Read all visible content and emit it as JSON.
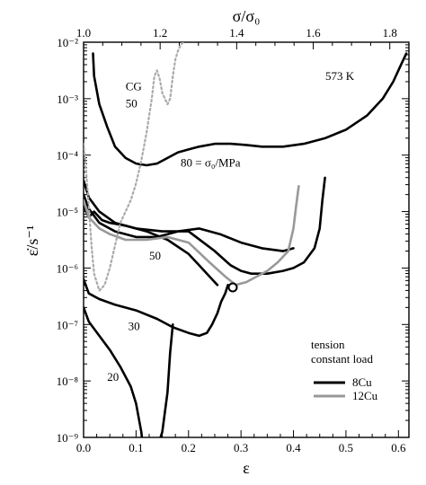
{
  "chart_data": {
    "type": "line",
    "xlabel": "ε",
    "ylabel": "ε̇/s⁻¹",
    "top_axis_label": "σ/σ₀",
    "xlim": [
      0,
      0.62
    ],
    "ylim_log10": [
      -9,
      -2
    ],
    "y_scale": "log",
    "grid": false,
    "x_ticks": [
      "0.0",
      "0.1",
      "0.2",
      "0.3",
      "0.4",
      "0.5",
      "0.6"
    ],
    "y_ticks": [
      "10⁻⁹",
      "10⁻⁸",
      "10⁻⁷",
      "10⁻⁶",
      "10⁻⁵",
      "10⁻⁴",
      "10⁻³",
      "10⁻²"
    ],
    "top_ticks": [
      "1.0",
      "1.2",
      "1.4",
      "1.6",
      "1.8"
    ],
    "top_range": [
      1.0,
      1.85
    ],
    "temperature_label": "573 K",
    "legend": {
      "title_lines": [
        "tension",
        "constant load"
      ],
      "items": [
        {
          "name": "8Cu",
          "color": "#000000"
        },
        {
          "name": "12Cu",
          "color": "#999999"
        }
      ]
    },
    "annotations": [
      {
        "text": "80 = σ₀/MPa",
        "x": 0.185,
        "log10y": -4.2
      },
      {
        "text": "50",
        "x": 0.125,
        "log10y": -5.85
      },
      {
        "text": "30",
        "x": 0.085,
        "log10y": -7.1
      },
      {
        "text": "20",
        "x": 0.045,
        "log10y": -8.0
      },
      {
        "text": "CG",
        "x": 0.08,
        "log10y": -2.85
      },
      {
        "text": "50",
        "x": 0.08,
        "log10y": -3.15
      }
    ],
    "series": [
      {
        "label": "8Cu 80 MPa",
        "color": "#000000",
        "dash": "none",
        "x": [
          0.018,
          0.02,
          0.03,
          0.045,
          0.06,
          0.08,
          0.1,
          0.12,
          0.14,
          0.16,
          0.18,
          0.2,
          0.22,
          0.25,
          0.28,
          0.31,
          0.34,
          0.38,
          0.42,
          0.46,
          0.5,
          0.54,
          0.57,
          0.59,
          0.605,
          0.615
        ],
        "log10y": [
          -2.2,
          -2.6,
          -3.1,
          -3.5,
          -3.85,
          -4.05,
          -4.15,
          -4.18,
          -4.15,
          -4.05,
          -3.95,
          -3.9,
          -3.85,
          -3.8,
          -3.8,
          -3.82,
          -3.85,
          -3.85,
          -3.8,
          -3.7,
          -3.55,
          -3.3,
          -3.0,
          -2.7,
          -2.4,
          -2.2
        ]
      },
      {
        "label": "8Cu 50 MPa a",
        "color": "#000000",
        "dash": "none",
        "x": [
          0.0,
          0.01,
          0.03,
          0.06,
          0.1,
          0.15,
          0.2,
          0.25,
          0.28,
          0.3,
          0.32,
          0.35,
          0.38,
          0.4,
          0.42,
          0.44,
          0.45,
          0.455,
          0.46
        ],
        "log10y": [
          -4.45,
          -4.75,
          -5.0,
          -5.2,
          -5.3,
          -5.35,
          -5.35,
          -5.7,
          -5.95,
          -6.05,
          -6.1,
          -6.1,
          -6.05,
          -6.0,
          -5.9,
          -5.65,
          -5.3,
          -4.8,
          -4.4
        ]
      },
      {
        "label": "8Cu 50 MPa b",
        "color": "#000000",
        "dash": "none",
        "x": [
          0.0,
          0.01,
          0.03,
          0.06,
          0.1,
          0.14,
          0.18,
          0.22,
          0.26,
          0.3,
          0.34,
          0.38,
          0.4
        ],
        "log10y": [
          -4.7,
          -4.95,
          -5.2,
          -5.35,
          -5.45,
          -5.45,
          -5.35,
          -5.3,
          -5.4,
          -5.55,
          -5.65,
          -5.7,
          -5.65
        ]
      },
      {
        "label": "8Cu 50 MPa c",
        "color": "#000000",
        "dash": "none",
        "x": [
          0.0,
          0.01,
          0.02,
          0.035,
          0.05,
          0.08,
          0.12,
          0.16,
          0.2,
          0.22,
          0.24,
          0.255
        ],
        "log10y": [
          -4.9,
          -5.1,
          -5.0,
          -5.15,
          -5.2,
          -5.25,
          -5.35,
          -5.5,
          -5.75,
          -5.95,
          -6.15,
          -6.3
        ]
      },
      {
        "label": "8Cu 30 MPa",
        "color": "#000000",
        "dash": "none",
        "x": [
          0.0,
          0.01,
          0.03,
          0.06,
          0.1,
          0.14,
          0.17,
          0.2,
          0.22,
          0.235,
          0.245,
          0.255,
          0.262,
          0.27,
          0.275
        ],
        "log10y": [
          -6.2,
          -6.45,
          -6.55,
          -6.65,
          -6.75,
          -6.9,
          -7.05,
          -7.15,
          -7.2,
          -7.15,
          -7.0,
          -6.8,
          -6.6,
          -6.45,
          -6.3
        ]
      },
      {
        "label": "8Cu 20 MPa",
        "color": "#000000",
        "dash": "none",
        "x": [
          0.0,
          0.01,
          0.03,
          0.05,
          0.07,
          0.09,
          0.1,
          0.11,
          0.115,
          0.12,
          0.13,
          0.14,
          0.15,
          0.16,
          0.165,
          0.17
        ],
        "log10y": [
          -6.7,
          -6.95,
          -7.2,
          -7.45,
          -7.75,
          -8.1,
          -8.4,
          -8.9,
          -9.3,
          -9.35,
          -9.25,
          -9.2,
          -8.9,
          -8.2,
          -7.5,
          -7.0
        ]
      },
      {
        "label": "12Cu 50 MPa",
        "color": "#999999",
        "dash": "none",
        "x": [
          0.0,
          0.01,
          0.02,
          0.03,
          0.05,
          0.08,
          0.12,
          0.16,
          0.2,
          0.24,
          0.27,
          0.29,
          0.31,
          0.33,
          0.35,
          0.37,
          0.39,
          0.4,
          0.405,
          0.41
        ],
        "log10y": [
          -4.8,
          -5.1,
          -5.2,
          -5.3,
          -5.4,
          -5.5,
          -5.5,
          -5.45,
          -5.55,
          -5.9,
          -6.15,
          -6.3,
          -6.25,
          -6.15,
          -6.05,
          -5.9,
          -5.7,
          -5.3,
          -4.9,
          -4.55
        ]
      },
      {
        "label": "CG 50 MPa",
        "color": "#aaaaaa",
        "dash": "2,3",
        "x": [
          0.0,
          0.005,
          0.01,
          0.015,
          0.02,
          0.03,
          0.04,
          0.05,
          0.06,
          0.07,
          0.08,
          0.09,
          0.1,
          0.11,
          0.12,
          0.13,
          0.135,
          0.14,
          0.145,
          0.15,
          0.16,
          0.165,
          0.17,
          0.175,
          0.18,
          0.185,
          0.19,
          0.2
        ],
        "log10y": [
          -3.8,
          -4.3,
          -4.9,
          -5.6,
          -6.1,
          -6.4,
          -6.3,
          -6.0,
          -5.6,
          -5.2,
          -5.0,
          -4.8,
          -4.5,
          -4.1,
          -3.6,
          -3.0,
          -2.6,
          -2.5,
          -2.65,
          -2.9,
          -3.1,
          -3.0,
          -2.6,
          -2.3,
          -2.15,
          -2.05,
          -2.0,
          -1.95
        ]
      }
    ]
  }
}
